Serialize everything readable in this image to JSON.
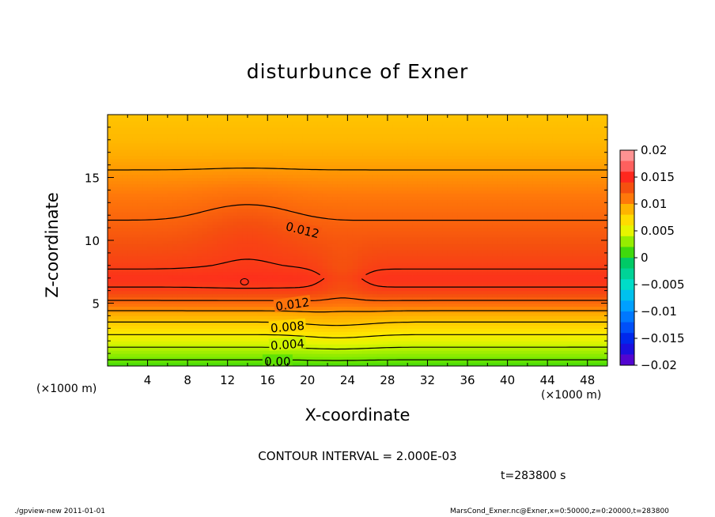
{
  "chart_data": {
    "type": "heatmap",
    "title": "disturbunce of Exner",
    "xlabel": "X-coordinate",
    "ylabel": "Z-coordinate",
    "x_unit": "(×1000 m)",
    "y_unit": "(×1000 m)",
    "xlim": [
      0,
      50
    ],
    "ylim": [
      0,
      20
    ],
    "x_ticks": [
      "4",
      "8",
      "12",
      "16",
      "20",
      "24",
      "28",
      "32",
      "36",
      "40",
      "44",
      "48"
    ],
    "y_ticks": [
      "5",
      "10",
      "15"
    ],
    "colorbar": {
      "range": [
        -0.02,
        0.02
      ],
      "tick_labels": [
        "0.02",
        "0.015",
        "0.01",
        "0.005",
        "0",
        "−0.005",
        "−0.01",
        "−0.015",
        "−0.02"
      ]
    },
    "contour_labels": [
      "0.012",
      "0.012",
      "0.008",
      "0.004",
      "0.00"
    ],
    "contour_interval_text": "CONTOUR INTERVAL = 2.000E-03",
    "profile_z_km": [
      0,
      1,
      2,
      3,
      4,
      5,
      6,
      7,
      8,
      10,
      12,
      14,
      16,
      18,
      20
    ],
    "profile_values": [
      0.001,
      0.003,
      0.005,
      0.007,
      0.009,
      0.0115,
      0.0138,
      0.0145,
      0.0138,
      0.0128,
      0.0118,
      0.0108,
      0.0098,
      0.0088,
      0.0082
    ]
  },
  "time_label": "t=283800 s",
  "footer_left": "./gpview-new   2011-01-01",
  "footer_right": "MarsCond_Exner.nc@Exner,x=0:50000,z=0:20000,t=283800"
}
